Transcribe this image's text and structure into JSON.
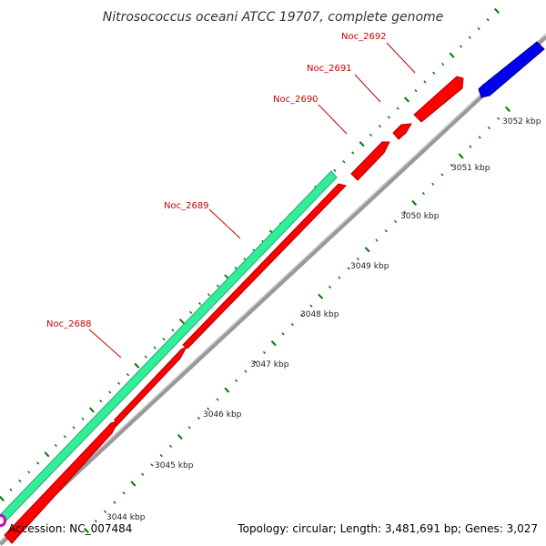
{
  "title": "Nitrosococcus oceani ATCC 19707, complete genome",
  "footer": {
    "accession": "Accession: NC_007484",
    "summary": "Topology: circular; Length: 3,481,691 bp; Genes: 3,027"
  },
  "colors": {
    "forward_strand": "#ff0000",
    "reverse_strand": "#0000ff",
    "other_track": "#33ee99",
    "backbone": "#999999",
    "ticks": "#007700",
    "label_text": "#cc0000",
    "marker": "#cc00cc"
  },
  "genes": [
    {
      "name": "Noc_2688"
    },
    {
      "name": "Noc_2689"
    },
    {
      "name": "Noc_2690"
    },
    {
      "name": "Noc_2691"
    },
    {
      "name": "Noc_2692"
    }
  ],
  "scale_labels": [
    "3044 kbp",
    "3045 kbp",
    "3046 kbp",
    "3047 kbp",
    "3048 kbp",
    "3049 kbp",
    "3050 kbp",
    "3051 kbp",
    "3052 kbp"
  ]
}
